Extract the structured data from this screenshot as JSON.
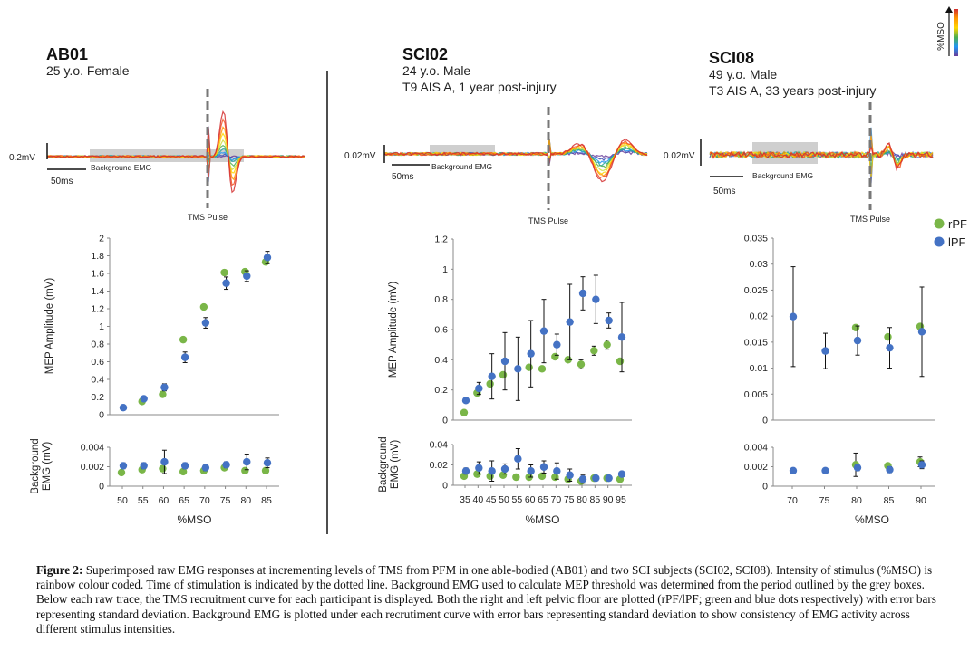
{
  "subjects": [
    {
      "id": "AB01",
      "lines": [
        "25 y.o. Female"
      ]
    },
    {
      "id": "SCI02",
      "lines": [
        "24 y.o. Male",
        "T9 AIS A, 1 year post-injury"
      ]
    },
    {
      "id": "SCI08",
      "lines": [
        "49 y.o. Male",
        "T3 AIS A, 33 years post-injury"
      ]
    }
  ],
  "traces": [
    {
      "amp_label": "0.2mV",
      "time_label": "50ms",
      "bg_label": "Background EMG",
      "pulse_label": "TMS Pulse"
    },
    {
      "amp_label": "0.02mV",
      "time_label": "50ms",
      "bg_label": "Background EMG",
      "pulse_label": "TMS Pulse"
    },
    {
      "amp_label": "0.02mV",
      "time_label": "50ms",
      "bg_label": "Background EMG",
      "pulse_label": "TMS Pulse"
    }
  ],
  "colorbar_label": "%MSO",
  "colors": {
    "rPF": "#7ab648",
    "lPF": "#4472c4",
    "trace_gray": "#777777"
  },
  "trace_palette": [
    "#6a3d9a",
    "#3f51b5",
    "#2196f3",
    "#26a69a",
    "#4caf50",
    "#cddc39",
    "#ffd600",
    "#ff9800",
    "#f4511e",
    "#d32f2f"
  ],
  "legend": [
    {
      "key": "rPF",
      "label": "rPF",
      "color": "#7ab648"
    },
    {
      "key": "lPF",
      "label": "lPF",
      "color": "#4472c4"
    }
  ],
  "chart_data": [
    {
      "type": "scatter",
      "subject": "AB01",
      "panel": "recruitment",
      "ylabel": "MEP Amplitude (mV)",
      "xlabel": "",
      "ylim": [
        0,
        2
      ],
      "yticks": [
        "0",
        "0.2",
        "0.4",
        "0.6",
        "0.8",
        "1",
        "1.2",
        "1.4",
        "1.6",
        "1.8",
        "2"
      ],
      "x": [
        50,
        55,
        60,
        65,
        70,
        75,
        80,
        85
      ],
      "series": [
        {
          "name": "rPF",
          "values": [
            null,
            0.15,
            0.23,
            0.85,
            1.22,
            1.61,
            1.62,
            1.73
          ],
          "err": [
            0,
            0,
            0,
            0,
            0,
            0,
            0,
            0
          ]
        },
        {
          "name": "lPF",
          "values": [
            0.08,
            0.18,
            0.31,
            0.65,
            1.04,
            1.49,
            1.57,
            1.78
          ],
          "err": [
            0,
            0.02,
            0.04,
            0.06,
            0.06,
            0.07,
            0.06,
            0.07
          ]
        }
      ]
    },
    {
      "type": "scatter",
      "subject": "AB01",
      "panel": "background",
      "ylabel": "Background EMG (mV)",
      "xlabel": "%MSO",
      "ylim": [
        0,
        0.004
      ],
      "yticks": [
        "0",
        "0.002",
        "0.004"
      ],
      "xticks": [
        "50",
        "55",
        "60",
        "65",
        "70",
        "75",
        "80",
        "85"
      ],
      "x": [
        50,
        55,
        60,
        65,
        70,
        75,
        80,
        85
      ],
      "series": [
        {
          "name": "rPF",
          "values": [
            0.0014,
            0.0017,
            0.0018,
            0.0015,
            0.0016,
            0.0019,
            0.0016,
            0.0016
          ],
          "err": [
            0,
            0,
            0,
            0,
            0,
            0,
            0,
            0
          ]
        },
        {
          "name": "lPF",
          "values": [
            0.0021,
            0.0021,
            0.0025,
            0.0021,
            0.0019,
            0.0022,
            0.0025,
            0.0024
          ],
          "err": [
            0.0003,
            0.0003,
            0.0012,
            0.0003,
            0.0003,
            0.0003,
            0.0008,
            0.0005
          ]
        }
      ]
    },
    {
      "type": "scatter",
      "subject": "SCI02",
      "panel": "recruitment",
      "ylabel": "MEP Amplitude (mV)",
      "xlabel": "",
      "ylim": [
        0,
        1.2
      ],
      "yticks": [
        "0",
        "0.2",
        "0.4",
        "0.6",
        "0.8",
        "1",
        "1.2"
      ],
      "x": [
        35,
        40,
        45,
        50,
        55,
        60,
        65,
        70,
        75,
        80,
        85,
        90,
        95
      ],
      "series": [
        {
          "name": "rPF",
          "values": [
            0.05,
            0.18,
            0.24,
            0.3,
            null,
            0.35,
            0.34,
            0.42,
            0.4,
            0.37,
            0.46,
            0.5,
            0.39
          ],
          "err": [
            0,
            0,
            0,
            0,
            0,
            0,
            0,
            0,
            0,
            0.03,
            0.03,
            0.03,
            0
          ]
        },
        {
          "name": "lPF",
          "values": [
            0.13,
            0.21,
            0.29,
            0.39,
            0.34,
            0.44,
            0.59,
            0.5,
            0.65,
            0.84,
            0.8,
            0.66,
            0.55
          ],
          "err": [
            0.01,
            0.04,
            0.15,
            0.19,
            0.21,
            0.22,
            0.21,
            0.07,
            0.25,
            0.11,
            0.16,
            0.05,
            0.23
          ]
        }
      ]
    },
    {
      "type": "scatter",
      "subject": "SCI02",
      "panel": "background",
      "ylabel": "Background EMG (mV)",
      "xlabel": "%MSO",
      "ylim": [
        0,
        0.04
      ],
      "yticks": [
        "0",
        "0.02",
        "0.04"
      ],
      "xticks": [
        "35",
        "40",
        "45",
        "50",
        "55",
        "60",
        "65",
        "70",
        "75",
        "80",
        "85",
        "90",
        "95"
      ],
      "x": [
        35,
        40,
        45,
        50,
        55,
        60,
        65,
        70,
        75,
        80,
        85,
        90,
        95
      ],
      "series": [
        {
          "name": "rPF",
          "values": [
            0.009,
            0.011,
            0.009,
            0.01,
            0.008,
            0.008,
            0.009,
            0.008,
            0.006,
            0.004,
            0.007,
            0.007,
            0.006
          ],
          "err": [
            0,
            0,
            0,
            0,
            0,
            0,
            0,
            0,
            0,
            0,
            0,
            0,
            0
          ]
        },
        {
          "name": "lPF",
          "values": [
            0.014,
            0.017,
            0.014,
            0.016,
            0.026,
            0.014,
            0.018,
            0.014,
            0.01,
            0.006,
            0.007,
            0.007,
            0.011
          ],
          "err": [
            0.003,
            0.006,
            0.01,
            0.005,
            0.01,
            0.006,
            0.006,
            0.008,
            0.006,
            0.004,
            0.001,
            0.002,
            0.002
          ]
        }
      ]
    },
    {
      "type": "scatter",
      "subject": "SCI08",
      "panel": "recruitment",
      "ylabel": "",
      "xlabel": "",
      "ylim": [
        0,
        0.035
      ],
      "yticks": [
        "0",
        "0.005",
        "0.01",
        "0.015",
        "0.02",
        "0.025",
        "0.03",
        "0.035"
      ],
      "x": [
        70,
        75,
        80,
        85,
        90
      ],
      "series": [
        {
          "name": "rPF",
          "values": [
            null,
            null,
            0.0178,
            0.016,
            0.018
          ],
          "err": [
            0,
            0,
            0,
            0,
            0
          ]
        },
        {
          "name": "lPF",
          "values": [
            0.0199,
            0.0133,
            0.0153,
            0.0139,
            0.017
          ],
          "err": [
            0.0096,
            0.0034,
            0.0028,
            0.0039,
            0.0086
          ]
        }
      ]
    },
    {
      "type": "scatter",
      "subject": "SCI08",
      "panel": "background",
      "ylabel": "",
      "xlabel": "%MSO",
      "ylim": [
        0,
        0.004
      ],
      "yticks": [
        "0",
        "0.002",
        "0.004"
      ],
      "xticks": [
        "70",
        "75",
        "80",
        "85",
        "90"
      ],
      "x": [
        70,
        75,
        80,
        85,
        90
      ],
      "series": [
        {
          "name": "rPF",
          "values": [
            null,
            null,
            0.0022,
            0.0021,
            0.0025
          ],
          "err": [
            0,
            0,
            0.0012,
            0,
            0.0005
          ]
        },
        {
          "name": "lPF",
          "values": [
            0.0016,
            0.0016,
            0.0019,
            0.0017,
            0.0022
          ],
          "err": [
            0,
            0,
            0.0003,
            0.0003,
            0.0004
          ]
        }
      ]
    }
  ],
  "caption": {
    "label": "Figure 2:",
    "text": " Superimposed raw EMG responses at incrementing levels of TMS from PFM in one able-bodied (AB01) and two SCI subjects (SCI02, SCI08). Intensity of stimulus (%MSO) is rainbow colour coded. Time of stimulation is indicated by the dotted line. Background EMG used to calculate MEP threshold was determined from the period outlined by the grey boxes. Below each raw trace, the TMS recruitment curve for each participant is displayed. Both the right and left pelvic floor are plotted (rPF/lPF; green and blue dots respectively) with error bars representing standard deviation. Background EMG is plotted under each recrutiment curve with error bars representing standard deviation to show consistency of EMG activity across different stimulus intensities."
  }
}
